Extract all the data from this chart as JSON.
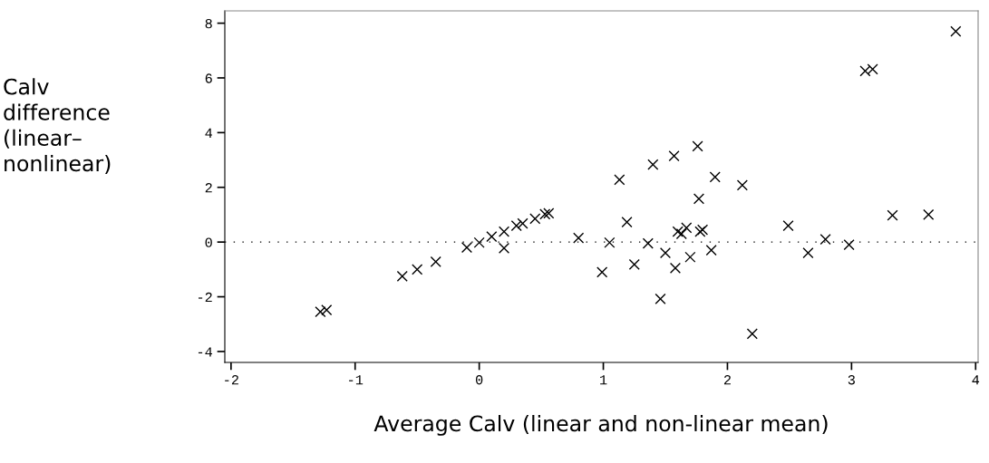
{
  "chart_data": {
    "type": "scatter",
    "xlabel": "Average Calv (linear and non-linear mean)",
    "ylabel": "Calv\ndifference\n(linear–\nnonlinear)",
    "x": [
      -1.28,
      -1.23,
      -0.62,
      -0.5,
      -0.35,
      -0.1,
      0.0,
      0.1,
      0.2,
      0.2,
      0.3,
      0.35,
      0.45,
      0.53,
      0.56,
      0.8,
      0.99,
      1.05,
      1.13,
      1.19,
      1.25,
      1.36,
      1.4,
      1.46,
      1.5,
      1.57,
      1.58,
      1.6,
      1.63,
      1.67,
      1.7,
      1.76,
      1.77,
      1.78,
      1.8,
      1.87,
      1.9,
      2.12,
      2.2,
      2.49,
      2.65,
      2.79,
      2.98,
      3.11,
      3.17,
      3.33,
      3.62,
      3.84
    ],
    "values": [
      -2.55,
      -2.48,
      -1.25,
      -1.0,
      -0.72,
      -0.2,
      -0.02,
      0.2,
      0.38,
      -0.22,
      0.6,
      0.68,
      0.85,
      1.02,
      1.05,
      0.15,
      -1.1,
      -0.02,
      2.28,
      0.73,
      -0.82,
      -0.05,
      2.83,
      -2.08,
      -0.4,
      3.15,
      -0.95,
      0.38,
      0.3,
      0.52,
      -0.55,
      3.5,
      1.58,
      0.38,
      0.45,
      -0.3,
      2.38,
      2.08,
      -3.35,
      0.6,
      -0.4,
      0.1,
      -0.1,
      6.25,
      6.32,
      0.98,
      1.0,
      7.7
    ],
    "color": "#000000",
    "marker": "cross",
    "xlim": [
      -2.05,
      4.02
    ],
    "ylim": [
      -4.4,
      8.45
    ],
    "xticks": [
      -2,
      -1,
      0,
      1,
      2,
      3,
      4
    ],
    "yticks": [
      -4,
      -2,
      0,
      2,
      4,
      6,
      8
    ],
    "ref_lines": [
      {
        "axis": "y",
        "value": 0,
        "line_style": "dotted",
        "color": "#000000"
      }
    ],
    "grid": false,
    "legend": false
  }
}
